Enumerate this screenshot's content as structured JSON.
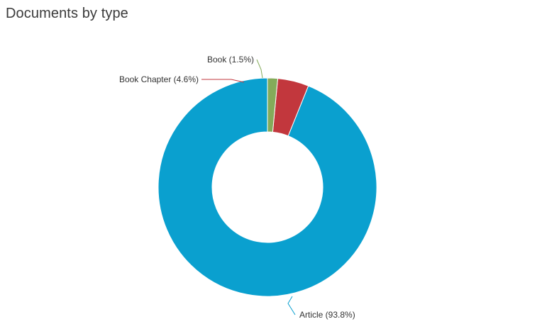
{
  "chart_data": {
    "type": "pie",
    "title": "Documents by type",
    "donut": true,
    "legend": "none",
    "categories": [
      "Article",
      "Book Chapter",
      "Book"
    ],
    "values": [
      93.8,
      4.6,
      1.5
    ],
    "data_labels": [
      "Article (93.8%)",
      "Book Chapter (4.6%)",
      "Book (1.5%)"
    ],
    "colors": [
      "#0aa0cf",
      "#c2373d",
      "#84ab5a"
    ]
  }
}
